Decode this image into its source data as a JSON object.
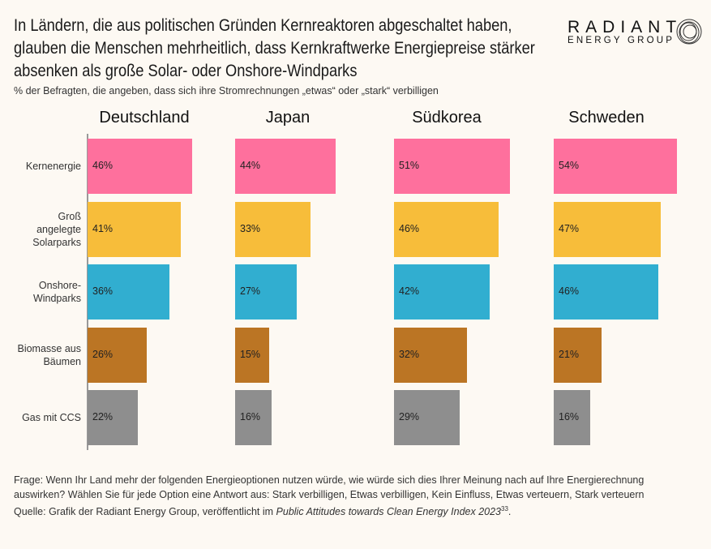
{
  "title": "In Ländern, die aus politischen Gründen Kernreaktoren abgeschaltet haben, glauben die Menschen mehrheitlich, dass Kernkraftwerke Energiepreise stärker absenken als große Solar- oder Onshore-Windparks",
  "subtitle": "% der Befragten, die angeben, dass sich ihre Stromrechnungen „etwas“ oder „stark“ verbilligen",
  "logo": {
    "line1": "RADIANT",
    "line2": "ENERGY GROUP"
  },
  "footer": {
    "question": "Frage: Wenn Ihr Land mehr der folgenden Energieoptionen nutzen würde, wie würde sich dies Ihrer Meinung nach auf Ihre Energierechnung auswirken? Wählen Sie für jede Option eine Antwort aus: Stark verbilligen, Etwas verbilligen, Kein Einfluss, Etwas verteuern, Stark verteuern",
    "source_prefix": "Quelle: Grafik der Radiant Energy Group, veröffentlicht im ",
    "source_title": "Public Attitudes towards Clean Energy Index 2023",
    "source_sup": "33",
    "source_suffix": "."
  },
  "chart_data": {
    "type": "bar",
    "orientation": "horizontal",
    "unit": "%",
    "categories": [
      "Kernenergie",
      "Groß angelegte Solarparks",
      "Onshore-Windparks",
      "Biomasse aus Bäumen",
      "Gas mit CCS"
    ],
    "colors": [
      "#fe709d",
      "#f7bd3a",
      "#31aed0",
      "#bb7524",
      "#8e8e8e"
    ],
    "panels": [
      {
        "name": "Deutschland",
        "values": [
          46,
          41,
          36,
          26,
          22
        ]
      },
      {
        "name": "Japan",
        "values": [
          44,
          33,
          27,
          15,
          16
        ]
      },
      {
        "name": "Südkorea",
        "values": [
          51,
          46,
          42,
          32,
          29
        ]
      },
      {
        "name": "Schweden",
        "values": [
          54,
          47,
          46,
          21,
          16
        ]
      }
    ]
  }
}
